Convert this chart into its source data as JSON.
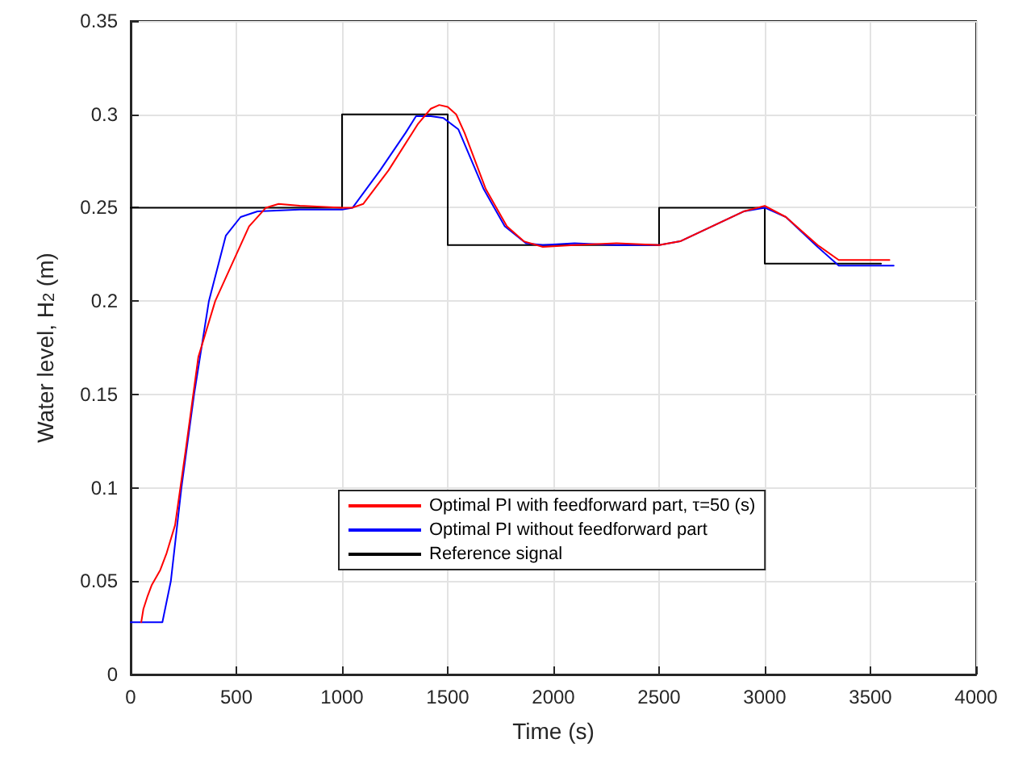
{
  "chart_data": {
    "type": "line",
    "xlabel": "Time (s)",
    "ylabel": "Water level, H$_{2}$ (m)",
    "xlim": [
      0,
      4000
    ],
    "xticks": [
      0,
      500,
      1000,
      1500,
      2000,
      2500,
      3000,
      3500,
      4000
    ],
    "ylim": [
      0,
      0.35
    ],
    "yticks": [
      0,
      0.05,
      0.1,
      0.15,
      0.2,
      0.25,
      0.3,
      0.35
    ],
    "grid": true,
    "legend": "bottom",
    "line_style": "solid",
    "marker": "none",
    "series": [
      {
        "name": "Optimal PI with feedforward part, τ=50 (s)",
        "color": "#ff0000",
        "x": [
          50,
          60,
          80,
          100,
          140,
          170,
          210,
          260,
          320,
          400,
          480,
          560,
          640,
          700,
          800,
          1000,
          1050,
          1100,
          1220,
          1360,
          1420,
          1460,
          1500,
          1540,
          1580,
          1680,
          1780,
          1860,
          1950,
          2100,
          2300,
          2500,
          2600,
          2750,
          2900,
          3000,
          3100,
          3250,
          3350,
          3480,
          3590
        ],
        "values": [
          0.028,
          0.035,
          0.042,
          0.048,
          0.056,
          0.065,
          0.08,
          0.12,
          0.17,
          0.2,
          0.22,
          0.24,
          0.25,
          0.252,
          0.251,
          0.25,
          0.25,
          0.252,
          0.27,
          0.295,
          0.303,
          0.305,
          0.304,
          0.3,
          0.29,
          0.26,
          0.24,
          0.232,
          0.229,
          0.23,
          0.231,
          0.23,
          0.232,
          0.24,
          0.248,
          0.251,
          0.245,
          0.23,
          0.222,
          0.222,
          0.222
        ]
      },
      {
        "name": "Optimal PI without feedforward part",
        "color": "#0000ff",
        "x": [
          0,
          150,
          190,
          240,
          300,
          370,
          450,
          520,
          600,
          800,
          1000,
          1050,
          1180,
          1300,
          1350,
          1420,
          1480,
          1550,
          1670,
          1770,
          1870,
          1950,
          2100,
          2300,
          2500,
          2600,
          2750,
          2900,
          3000,
          3100,
          3250,
          3350,
          3450,
          3610
        ],
        "values": [
          0.028,
          0.028,
          0.05,
          0.1,
          0.15,
          0.2,
          0.235,
          0.245,
          0.248,
          0.249,
          0.249,
          0.25,
          0.27,
          0.29,
          0.299,
          0.299,
          0.298,
          0.292,
          0.26,
          0.24,
          0.231,
          0.23,
          0.231,
          0.23,
          0.23,
          0.232,
          0.24,
          0.248,
          0.25,
          0.245,
          0.229,
          0.219,
          0.219,
          0.219
        ]
      },
      {
        "name": "Reference signal",
        "type": "step",
        "color": "#000000",
        "x": [
          0,
          1000,
          1500,
          2500,
          3000,
          3550
        ],
        "values": [
          0.25,
          0.3,
          0.23,
          0.25,
          0.22,
          0.22
        ]
      }
    ]
  }
}
